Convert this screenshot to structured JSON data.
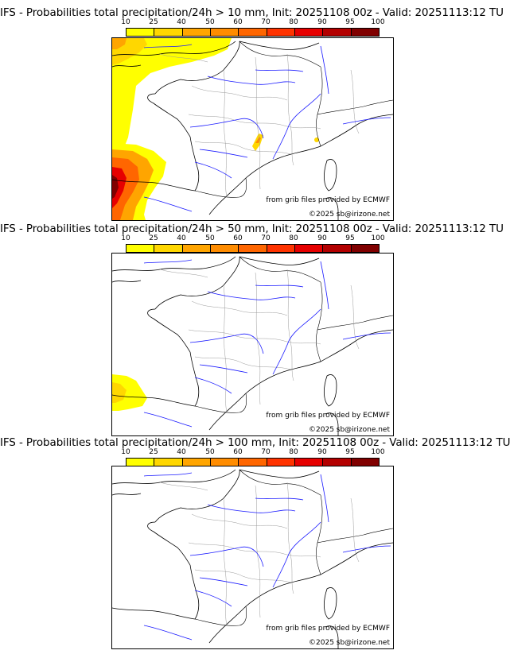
{
  "colors": {
    "scale": [
      "#ffff00",
      "#ffd700",
      "#ffa500",
      "#ff8c00",
      "#ff6600",
      "#ff3300",
      "#e60000",
      "#b30000",
      "#800000",
      "#4d0000"
    ],
    "river": "#1a1aff",
    "border": "#9a9a9a",
    "coast": "#000000"
  },
  "scale_ticks": [
    "10",
    "25",
    "40",
    "50",
    "60",
    "70",
    "80",
    "90",
    "95",
    "100"
  ],
  "panels": [
    {
      "title": "IFS - Probabilities total precipitation/24h > 10 mm, Init: 20251108 00z - Valid: 20251113:12 TU",
      "source": "from grib files provided by ECMWF",
      "copyright": "©2025 sb@irizone.net"
    },
    {
      "title": "IFS - Probabilities total precipitation/24h > 50 mm, Init: 20251108 00z - Valid: 20251113:12 TU",
      "source": "from grib files provided by ECMWF",
      "copyright": "©2025 sb@irizone.net"
    },
    {
      "title": "IFS - Probabilities total precipitation/24h > 100 mm, Init: 20251108 00z - Valid: 20251113:12 TU",
      "source": "from grib files provided by ECMWF",
      "copyright": "©2025 sb@irizone.net"
    }
  ]
}
